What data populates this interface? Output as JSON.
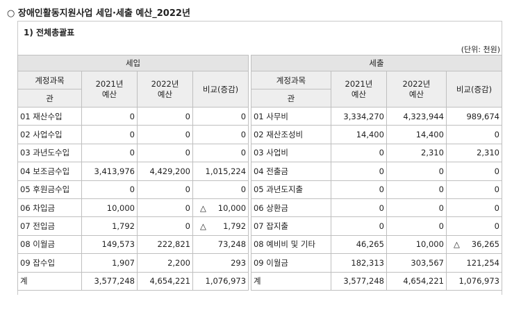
{
  "title": "○ 장애인활동지원사업 세입·세출 예산_2022년",
  "section_title": "1) 전체총괄표",
  "unit": "(단위: 천원)",
  "revenue": {
    "section_label": "세입",
    "headers": {
      "account": "계정과목",
      "account_sub": "관",
      "y2021_line1": "2021년",
      "y2021_line2": "예산",
      "y2022_line1": "2022년",
      "y2022_line2": "예산",
      "diff": "비교(증감)"
    },
    "rows": [
      {
        "name": "01 재산수입",
        "y2021": "0",
        "y2022": "0",
        "diff_mark": "",
        "diff": "0"
      },
      {
        "name": "02 사업수입",
        "y2021": "0",
        "y2022": "0",
        "diff_mark": "",
        "diff": "0"
      },
      {
        "name": "03 과년도수입",
        "y2021": "0",
        "y2022": "0",
        "diff_mark": "",
        "diff": "0"
      },
      {
        "name": "04 보조금수입",
        "y2021": "3,413,976",
        "y2022": "4,429,200",
        "diff_mark": "",
        "diff": "1,015,224"
      },
      {
        "name": "05 후원금수입",
        "y2021": "0",
        "y2022": "0",
        "diff_mark": "",
        "diff": "0"
      },
      {
        "name": "06 차입금",
        "y2021": "10,000",
        "y2022": "0",
        "diff_mark": "△",
        "diff": "10,000"
      },
      {
        "name": "07 전입금",
        "y2021": "1,792",
        "y2022": "0",
        "diff_mark": "△",
        "diff": "1,792"
      },
      {
        "name": "08 이월금",
        "y2021": "149,573",
        "y2022": "222,821",
        "diff_mark": "",
        "diff": "73,248"
      },
      {
        "name": "09 잡수입",
        "y2021": "1,907",
        "y2022": "2,200",
        "diff_mark": "",
        "diff": "293"
      },
      {
        "name": "계",
        "y2021": "3,577,248",
        "y2022": "4,654,221",
        "diff_mark": "",
        "diff": "1,076,973"
      }
    ]
  },
  "expenditure": {
    "section_label": "세출",
    "headers": {
      "account": "계정과목",
      "account_sub": "관",
      "y2021_line1": "2021년",
      "y2021_line2": "예산",
      "y2022_line1": "2022년",
      "y2022_line2": "예산",
      "diff": "비교(증감)"
    },
    "rows": [
      {
        "name": "01 사무비",
        "y2021": "3,334,270",
        "y2022": "4,323,944",
        "diff_mark": "",
        "diff": "989,674"
      },
      {
        "name": "02 재산조성비",
        "y2021": "14,400",
        "y2022": "14,400",
        "diff_mark": "",
        "diff": "0"
      },
      {
        "name": "03 사업비",
        "y2021": "0",
        "y2022": "2,310",
        "diff_mark": "",
        "diff": "2,310"
      },
      {
        "name": "04 전출금",
        "y2021": "0",
        "y2022": "0",
        "diff_mark": "",
        "diff": "0"
      },
      {
        "name": "05 과년도지출",
        "y2021": "0",
        "y2022": "0",
        "diff_mark": "",
        "diff": "0"
      },
      {
        "name": "06 상환금",
        "y2021": "0",
        "y2022": "0",
        "diff_mark": "",
        "diff": "0"
      },
      {
        "name": "07 잡지출",
        "y2021": "0",
        "y2022": "0",
        "diff_mark": "",
        "diff": "0"
      },
      {
        "name": "08 예비비 및 기타",
        "y2021": "46,265",
        "y2022": "10,000",
        "diff_mark": "△",
        "diff": "36,265"
      },
      {
        "name": "09 이월금",
        "y2021": "182,313",
        "y2022": "303,567",
        "diff_mark": "",
        "diff": "121,254"
      },
      {
        "name": "계",
        "y2021": "3,577,248",
        "y2022": "4,654,221",
        "diff_mark": "",
        "diff": "1,076,973"
      }
    ]
  }
}
